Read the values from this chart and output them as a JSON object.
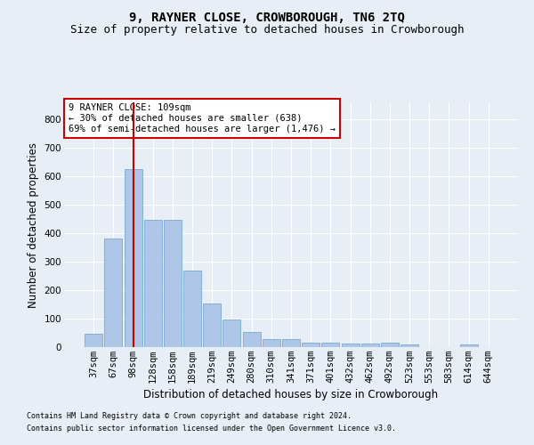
{
  "title1": "9, RAYNER CLOSE, CROWBOROUGH, TN6 2TQ",
  "title2": "Size of property relative to detached houses in Crowborough",
  "xlabel": "Distribution of detached houses by size in Crowborough",
  "ylabel": "Number of detached properties",
  "categories": [
    "37sqm",
    "67sqm",
    "98sqm",
    "128sqm",
    "158sqm",
    "189sqm",
    "219sqm",
    "249sqm",
    "280sqm",
    "310sqm",
    "341sqm",
    "371sqm",
    "401sqm",
    "432sqm",
    "462sqm",
    "492sqm",
    "523sqm",
    "553sqm",
    "583sqm",
    "614sqm",
    "644sqm"
  ],
  "values": [
    47,
    383,
    625,
    447,
    447,
    268,
    153,
    98,
    52,
    29,
    29,
    17,
    17,
    11,
    11,
    15,
    8,
    0,
    0,
    8,
    0
  ],
  "bar_color": "#aec6e8",
  "bar_edge_color": "#7aaad0",
  "red_line_x": 2,
  "annotation_text": "9 RAYNER CLOSE: 109sqm\n← 30% of detached houses are smaller (638)\n69% of semi-detached houses are larger (1,476) →",
  "annotation_box_color": "#ffffff",
  "annotation_box_edge": "#cc0000",
  "footer1": "Contains HM Land Registry data © Crown copyright and database right 2024.",
  "footer2": "Contains public sector information licensed under the Open Government Licence v3.0.",
  "bg_color": "#e8eef5",
  "plot_bg_color": "#e8eef5",
  "ylim": [
    0,
    860
  ],
  "yticks": [
    0,
    100,
    200,
    300,
    400,
    500,
    600,
    700,
    800
  ],
  "grid_color": "#ffffff",
  "title1_fontsize": 10,
  "title2_fontsize": 9,
  "xlabel_fontsize": 8.5,
  "ylabel_fontsize": 8.5,
  "annotation_fontsize": 7.5,
  "tick_fontsize": 7.5,
  "footer_fontsize": 6
}
